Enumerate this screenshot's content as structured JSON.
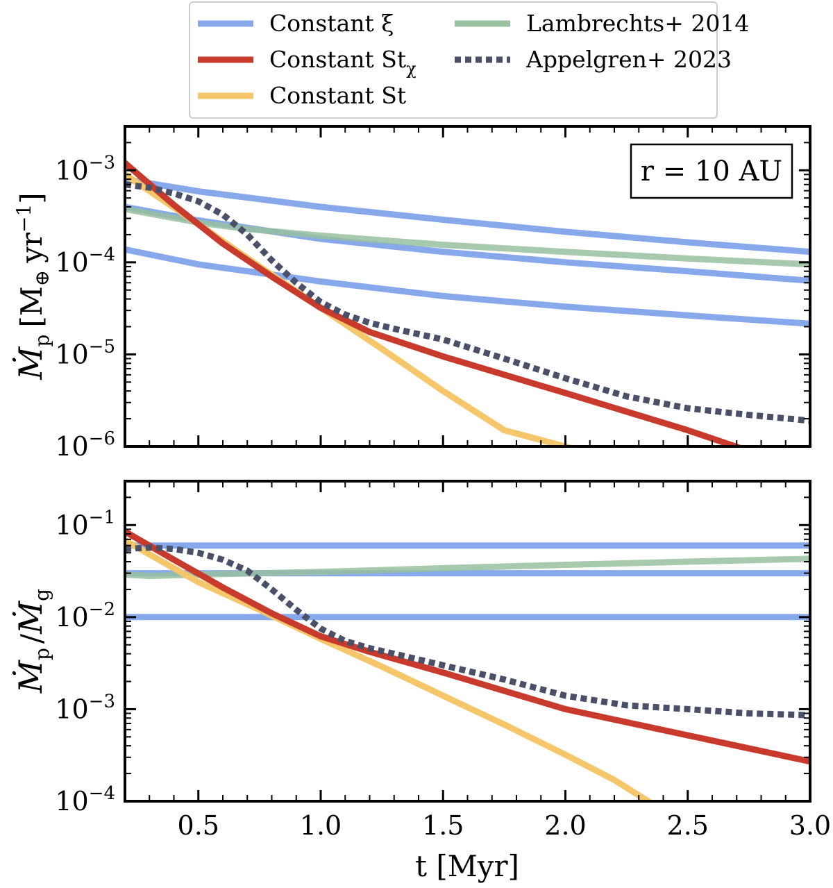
{
  "chart_data": [
    {
      "type": "line",
      "panel": "top",
      "yscale": "log",
      "xlim": [
        0.2,
        3.0
      ],
      "ylim": [
        1e-06,
        0.003
      ],
      "ylabel_main": "Ṁ",
      "ylabel_sub": "p",
      "ylabel_units": "[M",
      "ylabel_units_sub": "⊕",
      "ylabel_units_rest": "yr",
      "ylabel_units_sup": "−1",
      "ylabel_units_close": "]",
      "annotation": "r = 10 AU",
      "ytick_labels": [
        {
          "value": 1e-06,
          "base": "10",
          "exp": "−6"
        },
        {
          "value": 1e-05,
          "base": "10",
          "exp": "−5"
        },
        {
          "value": 0.0001,
          "base": "10",
          "exp": "−4"
        },
        {
          "value": 0.001,
          "base": "10",
          "exp": "−3"
        }
      ],
      "series": [
        {
          "key": "constant_xi",
          "color": "#87a9eb",
          "style": "solid",
          "x": [
            0.2,
            0.5,
            1.0,
            1.5,
            2.0,
            2.5,
            3.0
          ],
          "y": [
            0.0008,
            0.00059,
            0.0004,
            0.00029,
            0.000215,
            0.000165,
            0.00013
          ]
        },
        {
          "key": "constant_xi",
          "color": "#87a9eb",
          "style": "solid",
          "x": [
            0.2,
            0.5,
            1.0,
            1.5,
            2.0,
            2.5,
            3.0
          ],
          "y": [
            0.0004,
            0.000285,
            0.00018,
            0.00013,
            0.0001,
            8e-05,
            6.3e-05
          ]
        },
        {
          "key": "constant_xi",
          "color": "#87a9eb",
          "style": "solid",
          "x": [
            0.2,
            0.5,
            1.0,
            1.5,
            2.0,
            2.5,
            3.0
          ],
          "y": [
            0.000138,
            9.5e-05,
            6.2e-05,
            4.3e-05,
            3.3e-05,
            2.65e-05,
            2.15e-05
          ]
        },
        {
          "key": "lambrechts",
          "color": "#98c0a0",
          "style": "solid",
          "x": [
            0.2,
            0.5,
            0.7,
            1.0,
            1.5,
            2.0,
            2.5,
            3.0
          ],
          "y": [
            0.00038,
            0.00027,
            0.00023,
            0.000195,
            0.000155,
            0.00013,
            0.00011,
            9.5e-05
          ]
        },
        {
          "key": "constant_st",
          "color": "#f5c76a",
          "style": "solid",
          "x": [
            0.2,
            0.5,
            0.75,
            1.0,
            1.25,
            1.5,
            1.75,
            2.03
          ],
          "y": [
            0.0009,
            0.00026,
            9e-05,
            3.2e-05,
            1.15e-05,
            4e-06,
            1.5e-06,
            9.5e-07
          ]
        },
        {
          "key": "constant_st_chi",
          "color": "#c83a2c",
          "style": "solid",
          "x": [
            0.2,
            0.4,
            0.6,
            0.8,
            1.0,
            1.2,
            1.5,
            2.0,
            2.5,
            2.72
          ],
          "y": [
            0.0012,
            0.00042,
            0.00016,
            7e-05,
            3.2e-05,
            1.75e-05,
            9.5e-06,
            3.8e-06,
            1.5e-06,
            9.5e-07
          ]
        },
        {
          "key": "appelgren",
          "color": "#4a5068",
          "style": "dotted",
          "x": [
            0.2,
            0.3,
            0.4,
            0.5,
            0.6,
            0.7,
            0.8,
            0.9,
            1.0,
            1.1,
            1.2,
            1.3,
            1.5,
            1.75,
            2.0,
            2.25,
            2.5,
            2.75,
            3.0
          ],
          "y": [
            0.0007,
            0.00065,
            0.00056,
            0.00046,
            0.00033,
            0.0002,
            0.000105,
            6e-05,
            3.7e-05,
            2.7e-05,
            2.2e-05,
            1.9e-05,
            1.45e-05,
            9e-06,
            5.5e-06,
            3.5e-06,
            2.6e-06,
            2.2e-06,
            1.9e-06
          ]
        }
      ]
    },
    {
      "type": "line",
      "panel": "bottom",
      "yscale": "log",
      "xlim": [
        0.2,
        3.0
      ],
      "ylim": [
        0.0001,
        0.3
      ],
      "xlabel": "t [Myr]",
      "ylabel_num": "Ṁ",
      "ylabel_num_sub": "p",
      "ylabel_sep": "/",
      "ylabel_den": "Ṁ",
      "ylabel_den_sub": "g",
      "xtick_labels": [
        "0.5",
        "1.0",
        "1.5",
        "2.0",
        "2.5",
        "3.0"
      ],
      "xtick_values": [
        0.5,
        1.0,
        1.5,
        2.0,
        2.5,
        3.0
      ],
      "ytick_labels": [
        {
          "value": 0.0001,
          "base": "10",
          "exp": "−4"
        },
        {
          "value": 0.001,
          "base": "10",
          "exp": "−3"
        },
        {
          "value": 0.01,
          "base": "10",
          "exp": "−2"
        },
        {
          "value": 0.1,
          "base": "10",
          "exp": "−1"
        }
      ],
      "series": [
        {
          "key": "constant_xi",
          "color": "#87a9eb",
          "style": "solid",
          "x": [
            0.2,
            3.0
          ],
          "y": [
            0.06,
            0.06
          ]
        },
        {
          "key": "constant_xi",
          "color": "#87a9eb",
          "style": "solid",
          "x": [
            0.2,
            3.0
          ],
          "y": [
            0.03,
            0.03
          ]
        },
        {
          "key": "constant_xi",
          "color": "#87a9eb",
          "style": "solid",
          "x": [
            0.2,
            3.0
          ],
          "y": [
            0.01,
            0.01
          ]
        },
        {
          "key": "lambrechts",
          "color": "#98c0a0",
          "style": "solid",
          "x": [
            0.2,
            0.3,
            0.5,
            1.0,
            1.5,
            2.0,
            2.5,
            3.0
          ],
          "y": [
            0.029,
            0.028,
            0.029,
            0.031,
            0.034,
            0.037,
            0.04,
            0.043
          ]
        },
        {
          "key": "constant_st",
          "color": "#f5c76a",
          "style": "solid",
          "x": [
            0.2,
            0.5,
            0.75,
            1.0,
            1.25,
            1.5,
            1.75,
            2.0,
            2.2,
            2.35
          ],
          "y": [
            0.068,
            0.024,
            0.012,
            0.0058,
            0.0029,
            0.0014,
            0.00068,
            0.00032,
            0.00017,
            9.55e-05
          ]
        },
        {
          "key": "constant_st_chi",
          "color": "#c83a2c",
          "style": "solid",
          "x": [
            0.2,
            0.4,
            0.6,
            0.8,
            1.0,
            1.2,
            1.5,
            2.0,
            2.5,
            3.0
          ],
          "y": [
            0.085,
            0.042,
            0.021,
            0.011,
            0.0062,
            0.0042,
            0.0025,
            0.001,
            0.00052,
            0.00027
          ]
        },
        {
          "key": "appelgren",
          "color": "#4a5068",
          "style": "dotted",
          "x": [
            0.2,
            0.3,
            0.4,
            0.5,
            0.6,
            0.7,
            0.8,
            0.9,
            1.0,
            1.1,
            1.2,
            1.3,
            1.5,
            1.75,
            2.0,
            2.25,
            2.5,
            2.75,
            3.0
          ],
          "y": [
            0.055,
            0.057,
            0.055,
            0.05,
            0.042,
            0.032,
            0.02,
            0.012,
            0.0075,
            0.0055,
            0.0046,
            0.004,
            0.003,
            0.0021,
            0.0014,
            0.0011,
            0.001,
            0.0009,
            0.00086
          ]
        }
      ]
    }
  ],
  "legend": {
    "entries": [
      {
        "key": "constant_xi",
        "label": "Constant ξ",
        "color": "#87a9eb",
        "style": "solid"
      },
      {
        "key": "constant_st_chi",
        "label": "Constant St",
        "label_sub": "χ",
        "color": "#c83a2c",
        "style": "solid"
      },
      {
        "key": "constant_st",
        "label": "Constant St",
        "color": "#f5c76a",
        "style": "solid"
      },
      {
        "key": "lambrechts",
        "label": "Lambrechts+ 2014",
        "color": "#98c0a0",
        "style": "solid"
      },
      {
        "key": "appelgren",
        "label": "Appelgren+ 2023",
        "color": "#4a5068",
        "style": "dotted"
      }
    ]
  }
}
